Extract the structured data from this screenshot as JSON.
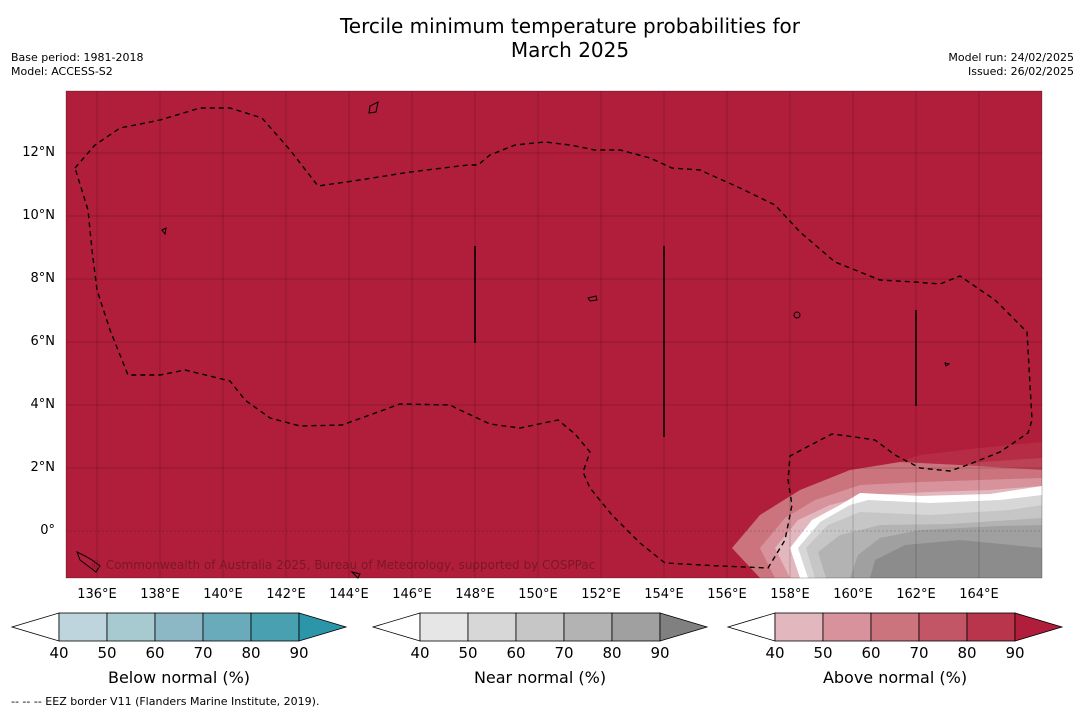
{
  "header": {
    "title_line1": "Tercile minimum temperature probabilities for",
    "title_line2": "March 2025",
    "base_period": "Base period: 1981-2018",
    "model": "Model: ACCESS-S2",
    "model_run": "Model run: 24/02/2025",
    "issued": "Issued: 26/02/2025"
  },
  "map": {
    "lat_labels": [
      "12°N",
      "10°N",
      "8°N",
      "6°N",
      "4°N",
      "2°N",
      "0°"
    ],
    "lon_labels": [
      "136°E",
      "138°E",
      "140°E",
      "142°E",
      "144°E",
      "146°E",
      "148°E",
      "150°E",
      "152°E",
      "154°E",
      "156°E",
      "158°E",
      "160°E",
      "162°E",
      "164°E"
    ],
    "background_color": "#b11e3b",
    "copyright": "© Commonwealth of Australia 2025, Bureau of Meteorology, supported by COSPPac"
  },
  "colorbars": [
    {
      "label": "Below normal (%)",
      "ticks": [
        "40",
        "50",
        "60",
        "70",
        "80",
        "90"
      ],
      "colors": [
        "#ffffff",
        "#bed5dd",
        "#a7c9d0",
        "#8bb8c4",
        "#6aabbb",
        "#48a0b0",
        "#2b96aa"
      ]
    },
    {
      "label": "Near normal (%)",
      "ticks": [
        "40",
        "50",
        "60",
        "70",
        "80",
        "90"
      ],
      "colors": [
        "#ffffff",
        "#e6e6e6",
        "#d7d7d7",
        "#c6c6c6",
        "#b3b3b3",
        "#a0a0a0",
        "#808080"
      ]
    },
    {
      "label": "Above normal (%)",
      "ticks": [
        "40",
        "50",
        "60",
        "70",
        "80",
        "90"
      ],
      "colors": [
        "#ffffff",
        "#e3b7be",
        "#d7929b",
        "#cb747e",
        "#c25566",
        "#b8354b",
        "#b11e3b"
      ]
    }
  ],
  "footnote": "--  --  -- EEZ border V11 (Flanders Marine Institute, 2019)."
}
